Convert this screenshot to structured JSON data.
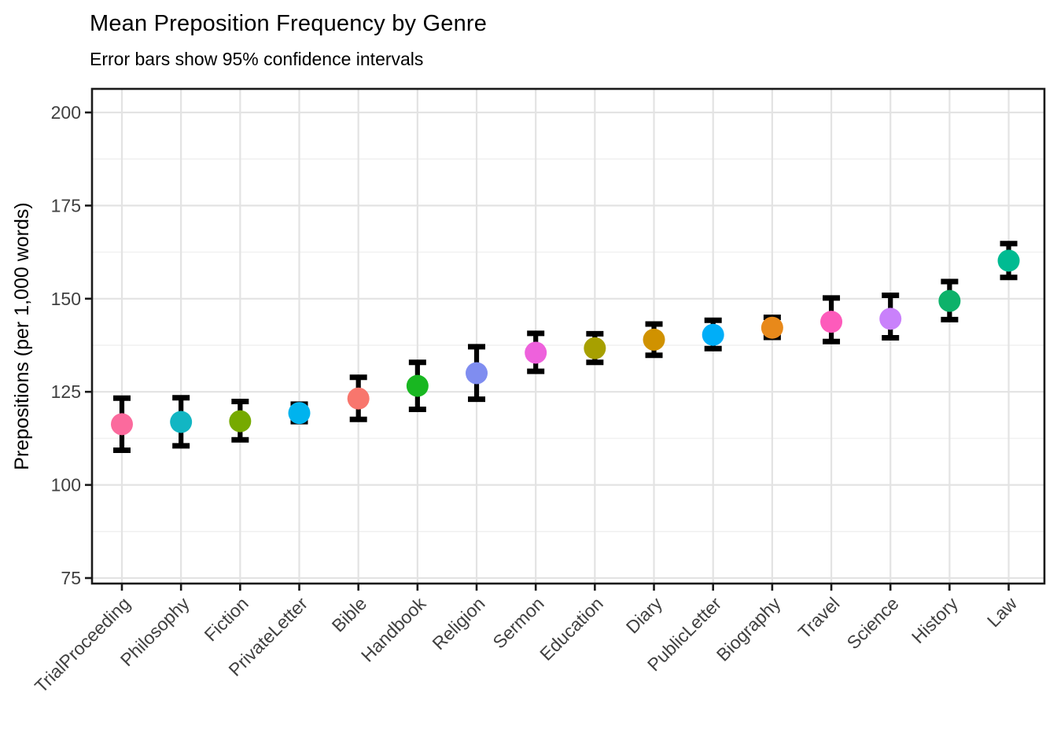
{
  "chart_data": {
    "type": "scatter",
    "subtype": "point-with-error-bars",
    "title": "Mean Preposition Frequency by Genre",
    "subtitle": "Error bars show 95% confidence intervals",
    "xlabel": "",
    "ylabel": "Prepositions (per 1,000 words)",
    "ylim": [
      75,
      205
    ],
    "y_ticks": [
      75,
      100,
      125,
      150,
      175,
      200
    ],
    "y_minor_ticks": [
      87.5,
      112.5,
      137.5,
      162.5,
      187.5
    ],
    "grid": "on",
    "legend": "none",
    "error_bar_meaning": "95% confidence interval",
    "categories": [
      "TrialProceeding",
      "Philosophy",
      "Fiction",
      "PrivateLetter",
      "Bible",
      "Handbook",
      "Religion",
      "Sermon",
      "Education",
      "Diary",
      "PublicLetter",
      "Biography",
      "Travel",
      "Science",
      "History",
      "Law"
    ],
    "points": [
      {
        "genre": "TrialProceeding",
        "mean": 116.3,
        "ci_low": 109.3,
        "ci_high": 123.3,
        "color": "#FB6A9D"
      },
      {
        "genre": "Philosophy",
        "mean": 116.9,
        "ci_low": 110.5,
        "ci_high": 123.4,
        "color": "#12B6C3"
      },
      {
        "genre": "Fiction",
        "mean": 117.1,
        "ci_low": 112.1,
        "ci_high": 122.4,
        "color": "#76AA00"
      },
      {
        "genre": "PrivateLetter",
        "mean": 119.3,
        "ci_low": 117.0,
        "ci_high": 121.7,
        "color": "#00B3EE"
      },
      {
        "genre": "Bible",
        "mean": 123.2,
        "ci_low": 117.6,
        "ci_high": 128.9,
        "color": "#F8766D"
      },
      {
        "genre": "Handbook",
        "mean": 126.6,
        "ci_low": 120.3,
        "ci_high": 132.9,
        "color": "#19B721"
      },
      {
        "genre": "Religion",
        "mean": 130.0,
        "ci_low": 123.0,
        "ci_high": 137.1,
        "color": "#7F8DF0"
      },
      {
        "genre": "Sermon",
        "mean": 135.5,
        "ci_low": 130.5,
        "ci_high": 140.7,
        "color": "#EE61DC"
      },
      {
        "genre": "Education",
        "mean": 136.7,
        "ci_low": 132.9,
        "ci_high": 140.6,
        "color": "#A7A000"
      },
      {
        "genre": "Diary",
        "mean": 139.0,
        "ci_low": 134.8,
        "ci_high": 143.2,
        "color": "#D09200"
      },
      {
        "genre": "PublicLetter",
        "mean": 140.3,
        "ci_low": 136.6,
        "ci_high": 144.2,
        "color": "#00AEF8"
      },
      {
        "genre": "Biography",
        "mean": 142.2,
        "ci_low": 139.6,
        "ci_high": 145.0,
        "color": "#E8891A"
      },
      {
        "genre": "Travel",
        "mean": 143.8,
        "ci_low": 138.5,
        "ci_high": 150.2,
        "color": "#FD5BBB"
      },
      {
        "genre": "Science",
        "mean": 144.6,
        "ci_low": 139.5,
        "ci_high": 150.9,
        "color": "#C981FB"
      },
      {
        "genre": "History",
        "mean": 149.4,
        "ci_low": 144.4,
        "ci_high": 154.6,
        "color": "#0DB26A"
      },
      {
        "genre": "Law",
        "mean": 160.2,
        "ci_low": 155.7,
        "ci_high": 164.8,
        "color": "#00BB92"
      }
    ],
    "colors": {
      "background": "#FFFFFF",
      "grid_major": "#E3E3E3",
      "grid_minor": "#F1F1F1",
      "panel_border": "#1A1A1A",
      "error_bar": "#000000",
      "axis_text": "#404040",
      "title_text": "#000000"
    }
  }
}
